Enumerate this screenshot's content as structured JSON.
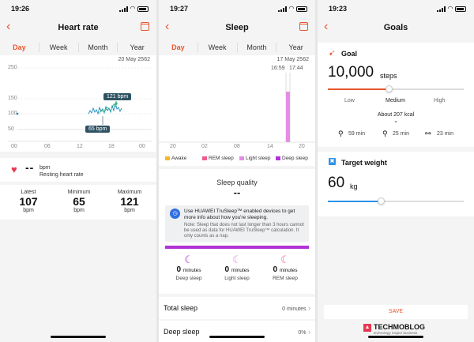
{
  "heart": {
    "status_time": "19:26",
    "title": "Heart rate",
    "tabs": [
      "Day",
      "Week",
      "Month",
      "Year"
    ],
    "date": "20 May 2562",
    "y_ticks": [
      "250",
      "150",
      "100",
      "50"
    ],
    "x_ticks": [
      "00",
      "06",
      "12",
      "18",
      "00"
    ],
    "max_callout": "121 bpm",
    "min_callout": "65 bpm",
    "resting_value": "--",
    "resting_unit": "bpm",
    "resting_label": "Resting heart rate",
    "stats": [
      {
        "label": "Latest",
        "value": "107",
        "unit": "bpm"
      },
      {
        "label": "Minimum",
        "value": "65",
        "unit": "bpm"
      },
      {
        "label": "Maximum",
        "value": "121",
        "unit": "bpm"
      }
    ],
    "colors": {
      "accent": "#e8582f",
      "line": "#1f8dbf",
      "green": "#36b37e",
      "heart": "#e53950"
    }
  },
  "sleep": {
    "status_time": "19:27",
    "title": "Sleep",
    "tabs": [
      "Day",
      "Week",
      "Month",
      "Year"
    ],
    "date": "17 May 2562",
    "time_start": "16:59",
    "time_end": "17:44",
    "x_ticks": [
      "20",
      "02",
      "08",
      "14",
      "20"
    ],
    "legend": [
      {
        "label": "Awake",
        "color": "#f5b82e"
      },
      {
        "label": "REM sleep",
        "color": "#ef5d8d"
      },
      {
        "label": "Light sleep",
        "color": "#e58ce6"
      },
      {
        "label": "Deep sleep",
        "color": "#b133d6"
      }
    ],
    "quality_title": "Sleep quality",
    "quality_value": "--",
    "trusleep_text": "Use HUAWEI TruSleep™ enabled devices to get more info about how you're sleeping.",
    "note_text": "Note: Sleep that does not last longer than 3 hours cannot be used as data for HUAWEI TruSleep™ calculation. It only counts as a nap.",
    "breakdown": [
      {
        "value": "0",
        "unit": "minutes",
        "label": "Deep sleep",
        "icon": "moon-z-icon",
        "color": "#b133d6"
      },
      {
        "value": "0",
        "unit": "minutes",
        "label": "Light sleep",
        "icon": "moon-icon",
        "color": "#e58ce6"
      },
      {
        "value": "0",
        "unit": "minutes",
        "label": "REM sleep",
        "icon": "moon-eye-icon",
        "color": "#ef5d8d"
      }
    ],
    "total_label": "Total sleep",
    "total_value": "0 minutes",
    "deep_label": "Deep sleep",
    "deep_value": "0%"
  },
  "goals": {
    "status_time": "19:23",
    "title": "Goals",
    "goal_label": "Goal",
    "goal_value": "10,000",
    "goal_unit": "steps",
    "levels": [
      "Low",
      "Medium",
      "High"
    ],
    "kcal": "About 207 kcal",
    "activities": [
      {
        "icon": "walk-icon",
        "value": "59 min"
      },
      {
        "icon": "run-icon",
        "value": "25 min"
      },
      {
        "icon": "bike-icon",
        "value": "23 min"
      }
    ],
    "goal_slider": 0.45,
    "weight_label": "Target weight",
    "weight_value": "60",
    "weight_unit": "kg",
    "weight_slider": 0.39,
    "save_label": "SAVE",
    "watermark": "TECHMOBLOG",
    "watermark_sub": "technology inspire business",
    "colors": {
      "accent": "#e8582f",
      "blue": "#2f93e8"
    }
  }
}
